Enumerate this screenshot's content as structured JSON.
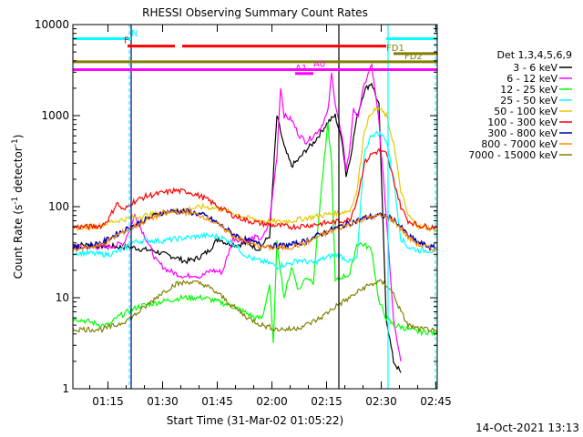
{
  "chart_data": {
    "type": "line",
    "title": "RHESSI Observing Summary Count Rates",
    "xlabel": "Start Time (31-Mar-02 01:05:22)",
    "ylabel_main": "Count Rate (s",
    "ylabel_sup1": "-1",
    "ylabel_mid": " detector",
    "ylabel_sup2": "-1",
    "ylabel_end": ")",
    "x_unit": "minutes since 01:05:22",
    "x_range": [
      0,
      100
    ],
    "y_scale": "log",
    "y_range": [
      1,
      10000
    ],
    "x_ticks": [
      {
        "min": 9.63,
        "label": "01:15"
      },
      {
        "min": 24.63,
        "label": "01:30"
      },
      {
        "min": 39.63,
        "label": "01:45"
      },
      {
        "min": 54.63,
        "label": "02:00"
      },
      {
        "min": 69.63,
        "label": "02:15"
      },
      {
        "min": 84.63,
        "label": "02:30"
      },
      {
        "min": 99.63,
        "label": "02:45"
      }
    ],
    "y_ticks": [
      {
        "v": 1,
        "label": "1"
      },
      {
        "v": 10,
        "label": "10"
      },
      {
        "v": 100,
        "label": "100"
      },
      {
        "v": 1000,
        "label": "1000"
      },
      {
        "v": 10000,
        "label": "10000"
      }
    ],
    "legend_header": "Det 1,3,4,5,6,9",
    "series": [
      {
        "name": "3 - 6 keV",
        "color": "#000000",
        "x": [
          0,
          4,
          8,
          10,
          13,
          16,
          19,
          22,
          25,
          28,
          31,
          34,
          37,
          40,
          42,
          45,
          48,
          51,
          54,
          56,
          58,
          60,
          62,
          64,
          66,
          68,
          70,
          72,
          74,
          75,
          76,
          78,
          80,
          82,
          84,
          86,
          88,
          90
        ],
        "y": [
          38,
          38,
          37,
          37,
          36,
          36,
          34,
          33,
          30,
          28,
          25,
          27,
          32,
          45,
          40,
          38,
          40,
          34,
          48,
          1000,
          450,
          280,
          330,
          420,
          500,
          650,
          850,
          1000,
          500,
          220,
          320,
          980,
          1900,
          2300,
          1300,
          6,
          2,
          1.5
        ]
      },
      {
        "name": "6 - 12 keV",
        "color": "#ff00ff",
        "x": [
          0,
          10,
          14,
          17,
          20,
          23,
          26,
          29,
          31,
          33,
          35,
          38,
          41,
          44,
          47,
          50,
          52,
          54,
          56,
          57,
          58,
          60,
          62,
          64,
          66,
          68,
          70,
          71,
          72,
          74,
          75,
          76,
          77,
          78,
          80,
          82,
          84,
          86,
          88,
          90
        ],
        "y": [
          36,
          36,
          40,
          80,
          45,
          25,
          20,
          18,
          17,
          18,
          17,
          20,
          19,
          45,
          42,
          46,
          44,
          68,
          360,
          2100,
          1000,
          900,
          620,
          520,
          600,
          740,
          1100,
          2900,
          1400,
          520,
          260,
          420,
          1250,
          900,
          2200,
          3600,
          850,
          80,
          6,
          2
        ]
      },
      {
        "name": "12 - 25 keV",
        "color": "#00ff00",
        "x": [
          0,
          4,
          8,
          10,
          12,
          15,
          18,
          21,
          24,
          27,
          30,
          33,
          36,
          40,
          44,
          47,
          50,
          52,
          54,
          55,
          56,
          58,
          60,
          62,
          64,
          66,
          68,
          70,
          71,
          72,
          74,
          76,
          78,
          80,
          82,
          84,
          86,
          88,
          90,
          92,
          95,
          98,
          100
        ],
        "y": [
          6,
          5.5,
          5,
          5,
          6,
          7,
          8,
          8.5,
          9,
          9.5,
          10,
          10,
          10,
          9,
          8,
          7,
          6,
          6,
          14,
          3,
          40,
          10,
          22,
          12,
          17,
          15,
          130,
          800,
          300,
          15,
          17,
          18,
          40,
          38,
          34,
          9,
          6,
          5,
          4.8,
          4.5,
          4.2,
          4.2,
          4
        ]
      },
      {
        "name": "25 - 50 keV",
        "color": "#00ffff",
        "x": [
          0,
          4,
          8,
          10,
          12,
          14,
          16,
          20,
          24,
          28,
          32,
          36,
          40,
          44,
          47,
          50,
          52,
          54,
          56,
          58,
          60,
          62,
          64,
          66,
          68,
          70,
          72,
          74,
          76,
          78,
          80,
          82,
          84,
          86,
          88,
          90,
          92,
          95,
          98,
          100
        ],
        "y": [
          31,
          31,
          30,
          30,
          32,
          34,
          40,
          43,
          42,
          44,
          46,
          48,
          47,
          40,
          30,
          26,
          25,
          24,
          22,
          23,
          24,
          26,
          25,
          24,
          26,
          28,
          30,
          28,
          25,
          27,
          400,
          620,
          640,
          550,
          200,
          45,
          36,
          33,
          33,
          33
        ]
      },
      {
        "name": "50 - 100 keV",
        "color": "#e6c800",
        "x": [
          0,
          4,
          8,
          10,
          12,
          16,
          20,
          24,
          28,
          32,
          36,
          40,
          44,
          48,
          52,
          56,
          60,
          64,
          68,
          72,
          76,
          78,
          80,
          82,
          84,
          86,
          88,
          90,
          92,
          95,
          98,
          100
        ],
        "y": [
          58,
          60,
          62,
          68,
          70,
          75,
          80,
          85,
          90,
          95,
          100,
          95,
          85,
          75,
          70,
          68,
          70,
          75,
          80,
          85,
          90,
          150,
          700,
          1100,
          1200,
          1000,
          500,
          150,
          80,
          60,
          58,
          55
        ]
      },
      {
        "name": "100 - 300 keV",
        "color": "#ff0000",
        "x": [
          0,
          4,
          8,
          10,
          12,
          14,
          16,
          20,
          24,
          28,
          32,
          36,
          40,
          44,
          48,
          52,
          56,
          60,
          64,
          68,
          72,
          76,
          78,
          80,
          82,
          84,
          86,
          88,
          90,
          92,
          95,
          98,
          100
        ],
        "y": [
          60,
          60,
          62,
          75,
          110,
          90,
          110,
          130,
          140,
          150,
          145,
          125,
          100,
          80,
          70,
          65,
          62,
          60,
          62,
          65,
          68,
          72,
          120,
          300,
          380,
          410,
          380,
          200,
          100,
          70,
          62,
          60,
          60
        ]
      },
      {
        "name": "300 - 800 keV",
        "color": "#0000aa",
        "x": [
          0,
          4,
          8,
          12,
          16,
          20,
          24,
          28,
          32,
          36,
          40,
          44,
          48,
          52,
          56,
          60,
          64,
          68,
          72,
          76,
          80,
          82,
          84,
          86,
          88,
          90,
          92,
          95,
          98,
          100
        ],
        "y": [
          35,
          37,
          40,
          50,
          60,
          72,
          85,
          90,
          88,
          80,
          65,
          50,
          42,
          38,
          37,
          38,
          42,
          50,
          58,
          66,
          75,
          78,
          80,
          78,
          72,
          60,
          48,
          40,
          36,
          35
        ]
      },
      {
        "name": "800 - 7000 keV",
        "color": "#ff8c00",
        "x": [
          0,
          4,
          8,
          12,
          16,
          20,
          24,
          28,
          32,
          36,
          40,
          44,
          48,
          52,
          56,
          60,
          64,
          68,
          72,
          76,
          80,
          82,
          84,
          86,
          88,
          90,
          92,
          95,
          98,
          100
        ],
        "y": [
          34,
          36,
          38,
          48,
          58,
          70,
          82,
          88,
          86,
          78,
          63,
          48,
          40,
          36,
          35,
          36,
          40,
          48,
          56,
          64,
          74,
          77,
          79,
          77,
          70,
          58,
          46,
          38,
          35,
          34
        ]
      },
      {
        "name": "7000 - 15000 keV",
        "color": "#808000",
        "x": [
          0,
          4,
          8,
          12,
          16,
          20,
          24,
          28,
          32,
          36,
          40,
          44,
          48,
          52,
          56,
          60,
          64,
          68,
          72,
          76,
          80,
          82,
          84,
          86,
          88,
          90,
          92,
          95,
          98,
          100
        ],
        "y": [
          4.5,
          4.5,
          4.5,
          5,
          6,
          8,
          11,
          14,
          15,
          14,
          11,
          8,
          6,
          5,
          4.5,
          4.5,
          5,
          6,
          8,
          10,
          13,
          14,
          15,
          14,
          11,
          7,
          5,
          4.5,
          4.5,
          4
        ]
      }
    ],
    "flags": [
      {
        "label": "N",
        "color": "#00ffff",
        "y": 7000,
        "segments": [
          [
            0,
            16
          ],
          [
            86,
            100
          ]
        ],
        "label_x": 16
      },
      {
        "label": "F",
        "color": "#ff0000",
        "y": 5800,
        "segments": [
          [
            15,
            28
          ],
          [
            30,
            86
          ]
        ],
        "label_x": 14
      },
      {
        "label": "FD1",
        "color": "#808000",
        "y": 4800,
        "segments": [
          [
            88,
            100
          ]
        ],
        "label_x": 86
      },
      {
        "label": "FD2",
        "color": "#808000",
        "y": 3900,
        "segments": [
          [
            0,
            100
          ]
        ],
        "label_x": 91
      },
      {
        "label": "A1",
        "color": "#ff00ff",
        "y": 2900,
        "segments": [
          [
            61,
            66
          ]
        ],
        "label_x": 61
      },
      {
        "label": "A0",
        "color": "#ff00ff",
        "y": 3200,
        "segments": [
          [
            0,
            100
          ]
        ],
        "label_x": 66
      }
    ],
    "verticals": [
      {
        "x": 0,
        "color": "#00ffff",
        "style": "solid"
      },
      {
        "x": 15.5,
        "color": "#00ffff",
        "style": "dashed"
      },
      {
        "x": 86.5,
        "color": "#00ffff",
        "style": "solid"
      },
      {
        "x": 99.5,
        "color": "#00ffff",
        "style": "dashed"
      },
      {
        "x": 16,
        "color": "#000080",
        "style": "solid"
      },
      {
        "x": 73,
        "color": "#000000",
        "style": "solid"
      }
    ],
    "footer": "14-Oct-2021 13:13"
  }
}
